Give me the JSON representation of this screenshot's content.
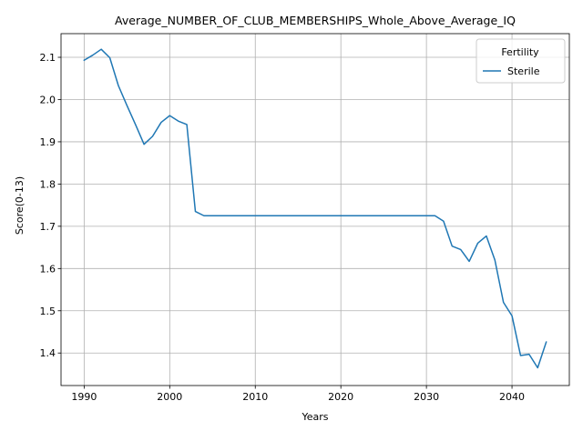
{
  "chart_data": {
    "type": "line",
    "title": "Average_NUMBER_OF_CLUB_MEMBERSHIPS_Whole_Above_Average_IQ",
    "xlabel": "Years",
    "ylabel": "Score(0-13)",
    "xlim": [
      1987.3,
      2046.7
    ],
    "ylim": [
      1.323,
      2.156
    ],
    "x_ticks": [
      1990,
      2000,
      2010,
      2020,
      2030,
      2040
    ],
    "y_ticks": [
      1.4,
      1.5,
      1.6,
      1.7,
      1.8,
      1.9,
      2.0,
      2.1
    ],
    "grid": true,
    "legend": {
      "title": "Fertility",
      "placement": "top-right"
    },
    "series": [
      {
        "name": "Sterile",
        "color": "#1f77b4",
        "x": [
          1990,
          1991,
          1992,
          1993,
          1994,
          1995,
          1996,
          1997,
          1998,
          1999,
          2000,
          2001,
          2002,
          2003,
          2004,
          2005,
          2006,
          2007,
          2008,
          2009,
          2010,
          2011,
          2012,
          2013,
          2014,
          2015,
          2016,
          2017,
          2018,
          2019,
          2020,
          2021,
          2022,
          2023,
          2024,
          2025,
          2026,
          2027,
          2028,
          2029,
          2030,
          2031,
          2032,
          2033,
          2034,
          2035,
          2036,
          2037,
          2038,
          2039,
          2040,
          2041,
          2042,
          2043,
          2044
        ],
        "values": [
          2.093,
          2.105,
          2.119,
          2.099,
          2.033,
          1.986,
          1.941,
          1.894,
          1.913,
          1.946,
          1.962,
          1.949,
          1.941,
          1.735,
          1.725,
          1.725,
          1.725,
          1.725,
          1.725,
          1.725,
          1.725,
          1.725,
          1.725,
          1.725,
          1.725,
          1.725,
          1.725,
          1.725,
          1.725,
          1.725,
          1.725,
          1.725,
          1.725,
          1.725,
          1.725,
          1.725,
          1.725,
          1.725,
          1.725,
          1.725,
          1.725,
          1.725,
          1.712,
          1.653,
          1.645,
          1.617,
          1.66,
          1.677,
          1.62,
          1.52,
          1.488,
          1.394,
          1.397,
          1.365,
          1.426
        ]
      }
    ]
  }
}
